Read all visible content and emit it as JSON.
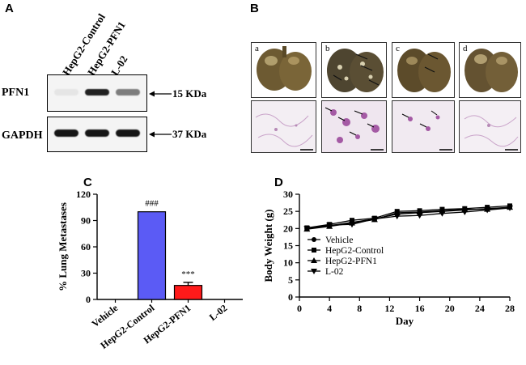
{
  "panels": {
    "a": {
      "label": "A"
    },
    "b": {
      "label": "B",
      "images": [
        "a",
        "b",
        "c",
        "d"
      ]
    },
    "c": {
      "label": "C"
    },
    "d": {
      "label": "D"
    }
  },
  "western_blot": {
    "lanes": [
      "HepG2-Control",
      "HepG2-PFN1",
      "L-02"
    ],
    "rows": [
      {
        "name": "PFN1",
        "marker": "15 KDa",
        "intensities": [
          0.05,
          0.9,
          0.5
        ]
      },
      {
        "name": "GAPDH",
        "marker": "37 KDa",
        "intensities": [
          0.95,
          0.95,
          0.95
        ]
      }
    ]
  },
  "chart_data": [
    {
      "type": "bar",
      "panel": "C",
      "categories": [
        "Vehicle",
        "HepG2-Control",
        "HepG2-PFN1",
        "L-02"
      ],
      "values": [
        0,
        100,
        16,
        0
      ],
      "errors": [
        0,
        0,
        3.5,
        0
      ],
      "colors": [
        "#5b5bf5",
        "#5b5bf5",
        "#ff1a1a",
        "#5b5bf5"
      ],
      "annotations": [
        "",
        "###",
        "***",
        ""
      ],
      "ylabel": "% Lung Metastases",
      "ylim": [
        0,
        120
      ],
      "yticks": [
        0,
        30,
        60,
        90,
        120
      ]
    },
    {
      "type": "line",
      "panel": "D",
      "x": [
        1,
        4,
        7,
        10,
        13,
        16,
        19,
        22,
        25,
        28
      ],
      "series": [
        {
          "name": "Vehicle",
          "marker": "circle",
          "values": [
            20.0,
            20.8,
            21.8,
            22.8,
            24.2,
            24.6,
            25.0,
            25.4,
            25.8,
            26.2
          ]
        },
        {
          "name": "HepG2-Control",
          "marker": "square",
          "values": [
            20.2,
            21.2,
            22.4,
            23.0,
            25.0,
            25.2,
            25.6,
            25.8,
            26.2,
            26.6
          ]
        },
        {
          "name": "HepG2-PFN1",
          "marker": "triangle-up",
          "values": [
            19.8,
            20.6,
            21.6,
            22.6,
            24.6,
            24.8,
            25.2,
            25.6,
            25.6,
            26.2
          ]
        },
        {
          "name": "L-02",
          "marker": "triangle-down",
          "values": [
            20.0,
            21.0,
            21.2,
            22.8,
            23.6,
            23.8,
            24.4,
            24.8,
            25.4,
            26.0
          ]
        }
      ],
      "xlabel": "Day",
      "ylabel": "Body Weight (g)",
      "xlim": [
        0,
        28
      ],
      "ylim": [
        0,
        30
      ],
      "xticks": [
        0,
        4,
        8,
        12,
        16,
        20,
        24,
        28
      ],
      "yticks": [
        0,
        5,
        10,
        15,
        20,
        25,
        30
      ]
    }
  ]
}
